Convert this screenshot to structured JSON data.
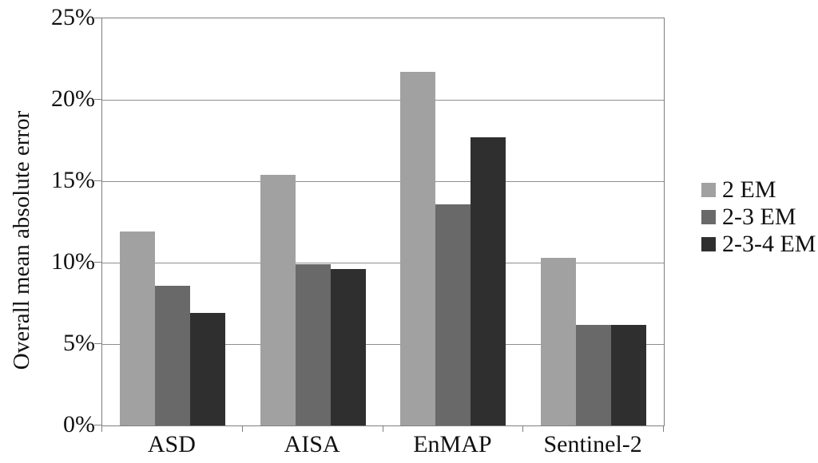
{
  "chart_data": {
    "type": "bar",
    "title": "",
    "xlabel": "",
    "ylabel": "Overall mean absolute error",
    "categories": [
      "ASD",
      "AISA",
      "EnMAP",
      "Sentinel-2"
    ],
    "series": [
      {
        "name": "2 EM",
        "color": "#a1a1a1",
        "values": [
          11.9,
          15.4,
          21.7,
          10.3
        ]
      },
      {
        "name": "2-3 EM",
        "color": "#696969",
        "values": [
          8.6,
          9.9,
          13.6,
          6.2
        ]
      },
      {
        "name": "2-3-4 EM",
        "color": "#2f2f2f",
        "values": [
          6.9,
          9.6,
          17.7,
          6.2
        ]
      }
    ],
    "ylim": [
      0,
      25
    ],
    "yticks": [
      {
        "value": 0,
        "label": "0%"
      },
      {
        "value": 5,
        "label": "5%"
      },
      {
        "value": 10,
        "label": "10%"
      },
      {
        "value": 15,
        "label": "15%"
      },
      {
        "value": 20,
        "label": "20%"
      },
      {
        "value": 25,
        "label": "25%"
      }
    ],
    "grid": true,
    "legend_position": "right"
  },
  "colors": {
    "background": "#ffffff",
    "gridline": "#8f8f8f",
    "axis": "#7f7f7f",
    "text": "#111111"
  }
}
